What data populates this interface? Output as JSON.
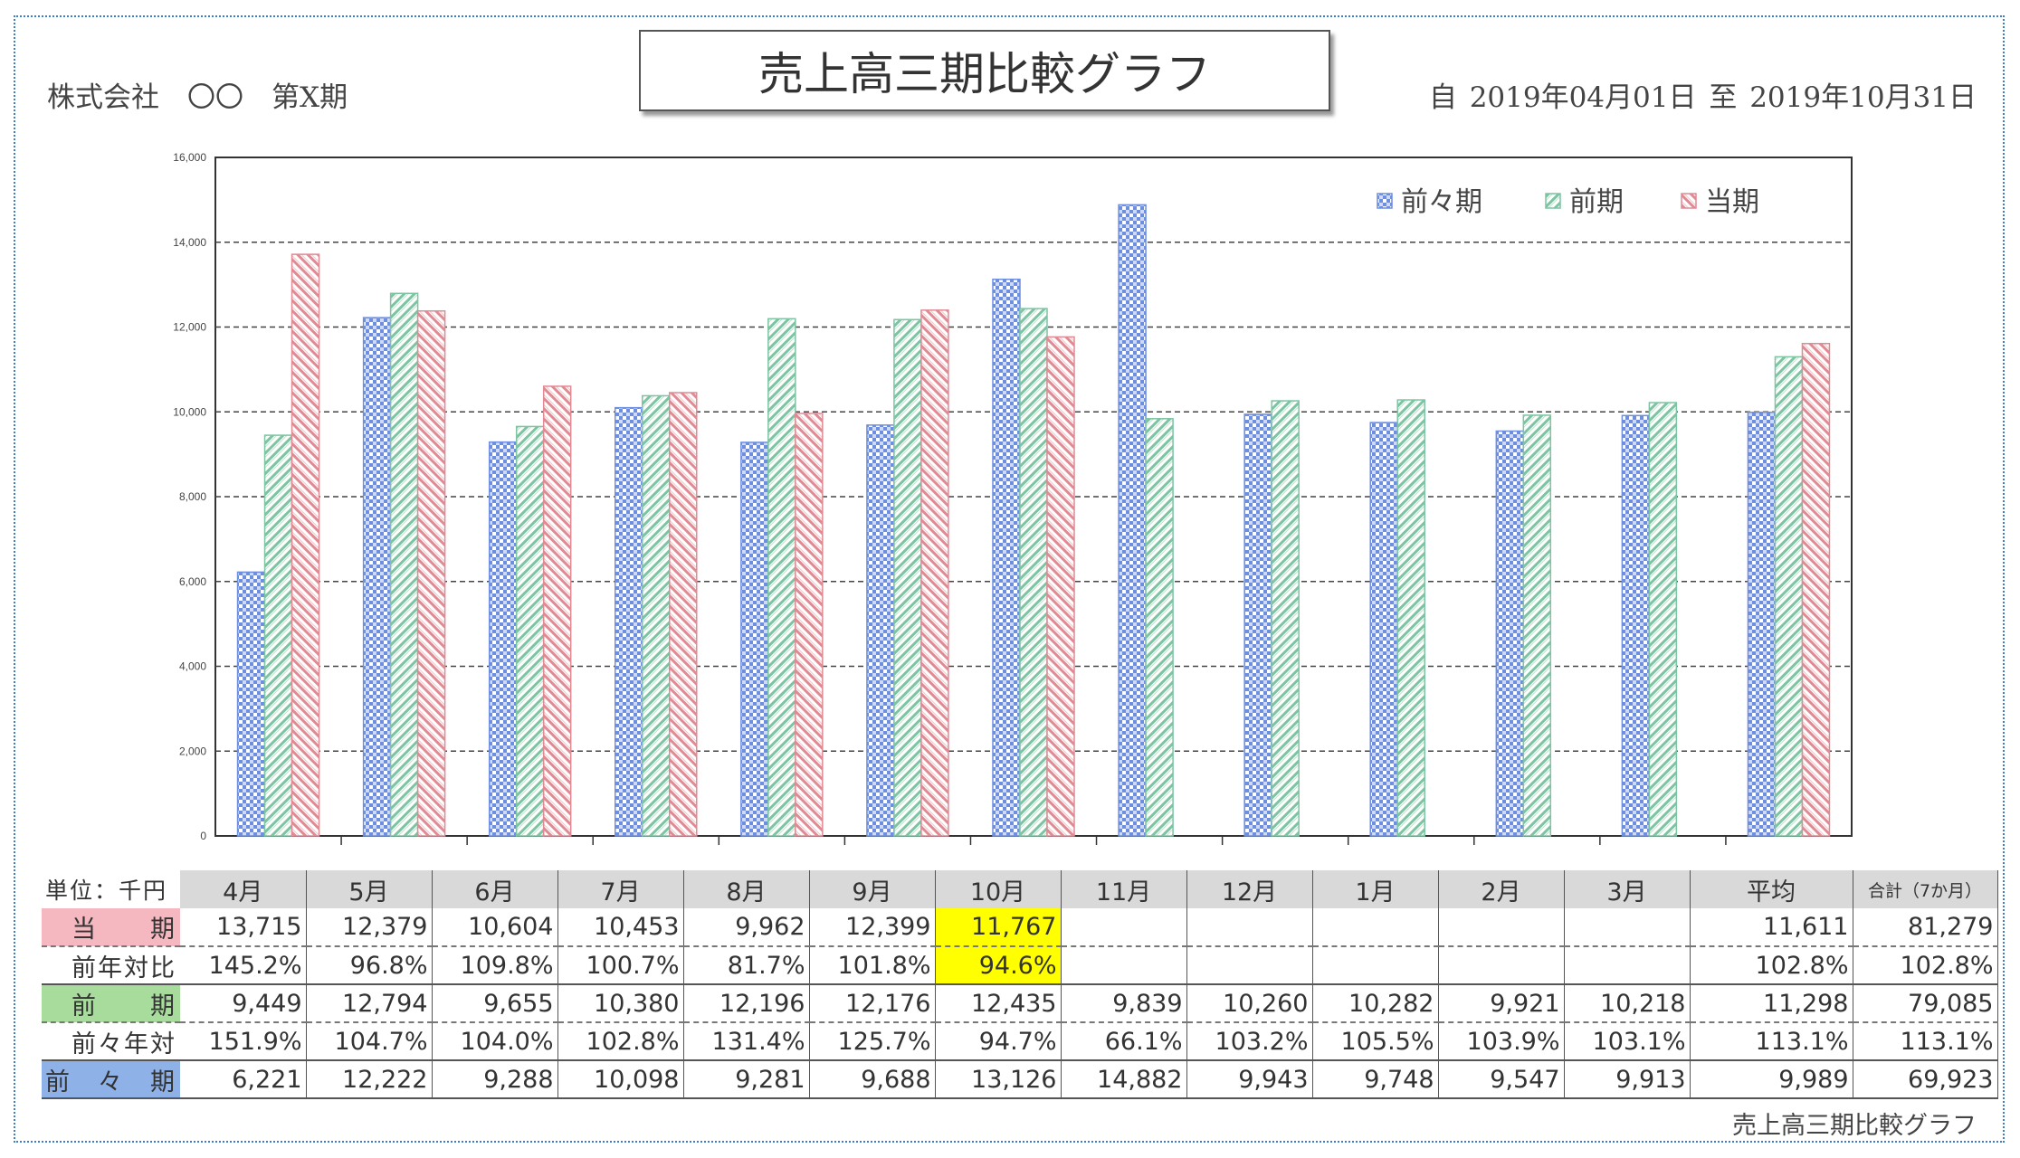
{
  "header": {
    "company": "株式会社　〇〇　第X期",
    "title": "売上高三期比較グラフ",
    "period_from_label": "自",
    "period_from": "2019年04月01日",
    "period_to_label": "至",
    "period_to": "2019年10月31日"
  },
  "footer": {
    "caption": "売上高三期比較グラフ"
  },
  "chart_data": {
    "type": "bar",
    "categories": [
      "4月",
      "5月",
      "6月",
      "7月",
      "8月",
      "9月",
      "10月",
      "11月",
      "12月",
      "1月",
      "2月",
      "3月",
      "平均"
    ],
    "series": [
      {
        "name": "前々期",
        "color": "#6e8fe0",
        "values": [
          6221,
          12222,
          9288,
          10098,
          9281,
          9688,
          13126,
          14882,
          9943,
          9748,
          9547,
          9913,
          9989
        ]
      },
      {
        "name": "前期",
        "color": "#7cc4a2",
        "values": [
          9449,
          12794,
          9655,
          10380,
          12196,
          12176,
          12435,
          9839,
          10260,
          10282,
          9921,
          10218,
          11298
        ]
      },
      {
        "name": "当期",
        "color": "#e08a94",
        "values": [
          13715,
          12379,
          10604,
          10453,
          9962,
          12399,
          11767,
          null,
          null,
          null,
          null,
          null,
          11611
        ]
      }
    ],
    "y_ticks": [
      "0",
      "2,000",
      "4,000",
      "6,000",
      "8,000",
      "10,000",
      "12,000",
      "14,000",
      "16,000"
    ],
    "ylim": [
      0,
      16000
    ],
    "grid": true,
    "legend_position": "top-right"
  },
  "table": {
    "unit_label": "単位：千円",
    "headers": [
      "4月",
      "5月",
      "6月",
      "7月",
      "8月",
      "9月",
      "10月",
      "11月",
      "12月",
      "1月",
      "2月",
      "3月",
      "平均",
      "合計（7か月）"
    ],
    "rows": [
      {
        "label": "当　　期",
        "style": "cur",
        "cells": [
          "13,715",
          "12,379",
          "10,604",
          "10,453",
          "9,962",
          "12,399",
          "11,767",
          "",
          "",
          "",
          "",
          "",
          "11,611",
          "81,279"
        ]
      },
      {
        "label": "前年対比",
        "style": "",
        "cells": [
          "145.2%",
          "96.8%",
          "109.8%",
          "100.7%",
          "81.7%",
          "101.8%",
          "94.6%",
          "",
          "",
          "",
          "",
          "",
          "102.8%",
          "102.8%"
        ]
      },
      {
        "label": "前　　期",
        "style": "prev",
        "cells": [
          "9,449",
          "12,794",
          "9,655",
          "10,380",
          "12,196",
          "12,176",
          "12,435",
          "9,839",
          "10,260",
          "10,282",
          "9,921",
          "10,218",
          "11,298",
          "79,085"
        ]
      },
      {
        "label": "前々年対",
        "style": "",
        "cells": [
          "151.9%",
          "104.7%",
          "104.0%",
          "102.8%",
          "131.4%",
          "125.7%",
          "94.7%",
          "66.1%",
          "103.2%",
          "105.5%",
          "103.9%",
          "103.1%",
          "113.1%",
          "113.1%"
        ]
      },
      {
        "label": "前　々　期",
        "style": "pp",
        "cells": [
          "6,221",
          "12,222",
          "9,288",
          "10,098",
          "9,281",
          "9,688",
          "13,126",
          "14,882",
          "9,943",
          "9,748",
          "9,547",
          "9,913",
          "9,989",
          "69,923"
        ]
      }
    ]
  }
}
